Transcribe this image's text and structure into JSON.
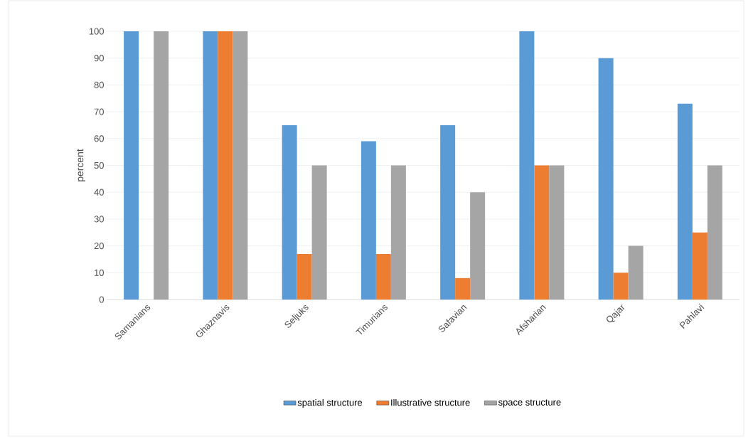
{
  "chart_data": {
    "type": "bar",
    "ylabel": "percent",
    "categories": [
      "Samanians",
      "Ghaznavis",
      "Seljuks",
      "Timurians",
      "Safavian",
      "Afsharian",
      "Qajar",
      "Pahlavi"
    ],
    "series": [
      {
        "name": "spatial structure",
        "color": "#5b9bd5",
        "values": [
          100,
          100,
          65,
          59,
          65,
          100,
          90,
          73
        ]
      },
      {
        "name": "Illustrative structure",
        "color": "#ed7d31",
        "values": [
          0,
          100,
          17,
          17,
          8,
          50,
          10,
          25
        ]
      },
      {
        "name": "space structure",
        "color": "#a5a5a5",
        "values": [
          100,
          100,
          50,
          50,
          40,
          50,
          20,
          50
        ]
      }
    ],
    "ylim": [
      0,
      100
    ],
    "yticks": [
      0,
      10,
      20,
      30,
      40,
      50,
      60,
      70,
      80,
      90,
      100
    ],
    "grid": "y",
    "legend": "bottom"
  }
}
